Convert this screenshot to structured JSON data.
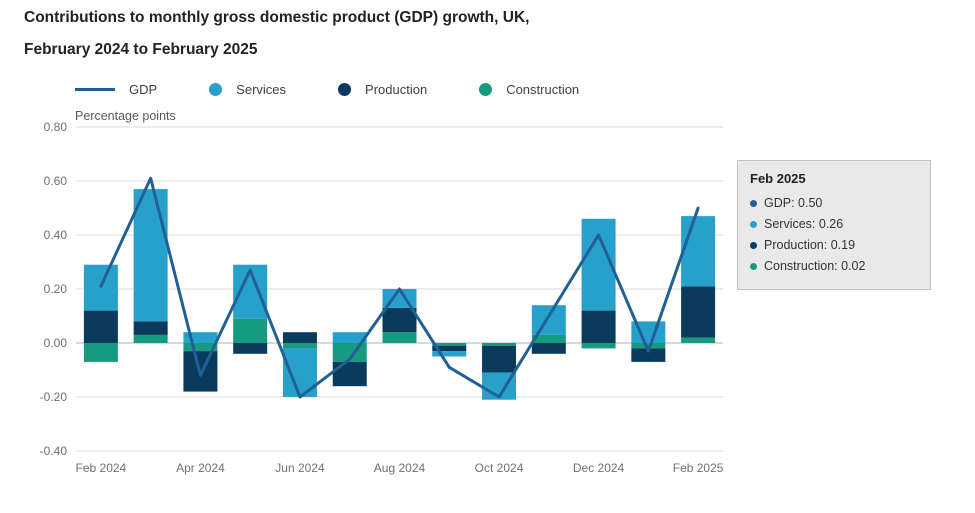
{
  "title": {
    "line1": "Contributions to monthly gross domestic product (GDP) growth, UK,",
    "line2": "February 2024 to February 2025"
  },
  "legend": [
    {
      "label": "GDP",
      "swatch": "line",
      "color": "#206095"
    },
    {
      "label": "Services",
      "swatch": "dot",
      "color": "#27a0cc"
    },
    {
      "label": "Production",
      "swatch": "dot",
      "color": "#0a3b5c"
    },
    {
      "label": "Construction",
      "swatch": "dot",
      "color": "#169b80"
    }
  ],
  "tooltip": {
    "title": "Feb 2025",
    "rows": [
      {
        "label": "GDP",
        "value": "0.50",
        "color": "#206095"
      },
      {
        "label": "Services",
        "value": "0.26",
        "color": "#27a0cc"
      },
      {
        "label": "Production",
        "value": "0.19",
        "color": "#0a3b5c"
      },
      {
        "label": "Construction",
        "value": "0.02",
        "color": "#169b80"
      }
    ]
  },
  "chart_data": {
    "type": "bar",
    "stacked": true,
    "title": "Contributions to monthly gross domestic product (GDP) growth, UK, February 2024 to February 2025",
    "ylabel": "Percentage points",
    "ylim": [
      -0.4,
      0.8
    ],
    "yticks": [
      0.8,
      0.6,
      0.4,
      0.2,
      0.0,
      -0.2,
      -0.4
    ],
    "grid": true,
    "legend_position": "top",
    "categories": [
      "Feb 2024",
      "Mar 2024",
      "Apr 2024",
      "May 2024",
      "Jun 2024",
      "Jul 2024",
      "Aug 2024",
      "Sep 2024",
      "Oct 2024",
      "Nov 2024",
      "Dec 2024",
      "Jan 2025",
      "Feb 2025"
    ],
    "x_tick_labels": [
      "Feb 2024",
      "Apr 2024",
      "Jun 2024",
      "Aug 2024",
      "Oct 2024",
      "Dec 2024",
      "Feb 2025"
    ],
    "stack_order_from_baseline": [
      "Construction",
      "Production",
      "Services"
    ],
    "series": [
      {
        "name": "Services",
        "type": "bar",
        "color": "#27a0cc",
        "values": [
          0.17,
          0.49,
          0.04,
          0.2,
          -0.18,
          0.04,
          0.07,
          -0.02,
          -0.1,
          0.11,
          0.34,
          0.08,
          0.26
        ]
      },
      {
        "name": "Production",
        "type": "bar",
        "color": "#0a3b5c",
        "values": [
          0.12,
          0.05,
          -0.15,
          -0.04,
          0.04,
          -0.09,
          0.09,
          -0.02,
          -0.1,
          -0.04,
          0.12,
          -0.05,
          0.19
        ]
      },
      {
        "name": "Construction",
        "type": "bar",
        "color": "#169b80",
        "values": [
          -0.07,
          0.03,
          -0.03,
          0.09,
          -0.02,
          -0.07,
          0.04,
          -0.01,
          -0.01,
          0.03,
          -0.02,
          -0.02,
          0.02
        ]
      },
      {
        "name": "GDP",
        "type": "line",
        "color": "#206095",
        "values": [
          0.21,
          0.61,
          -0.12,
          0.27,
          -0.2,
          -0.06,
          0.2,
          -0.09,
          -0.2,
          0.1,
          0.4,
          -0.03,
          0.5
        ]
      }
    ]
  }
}
